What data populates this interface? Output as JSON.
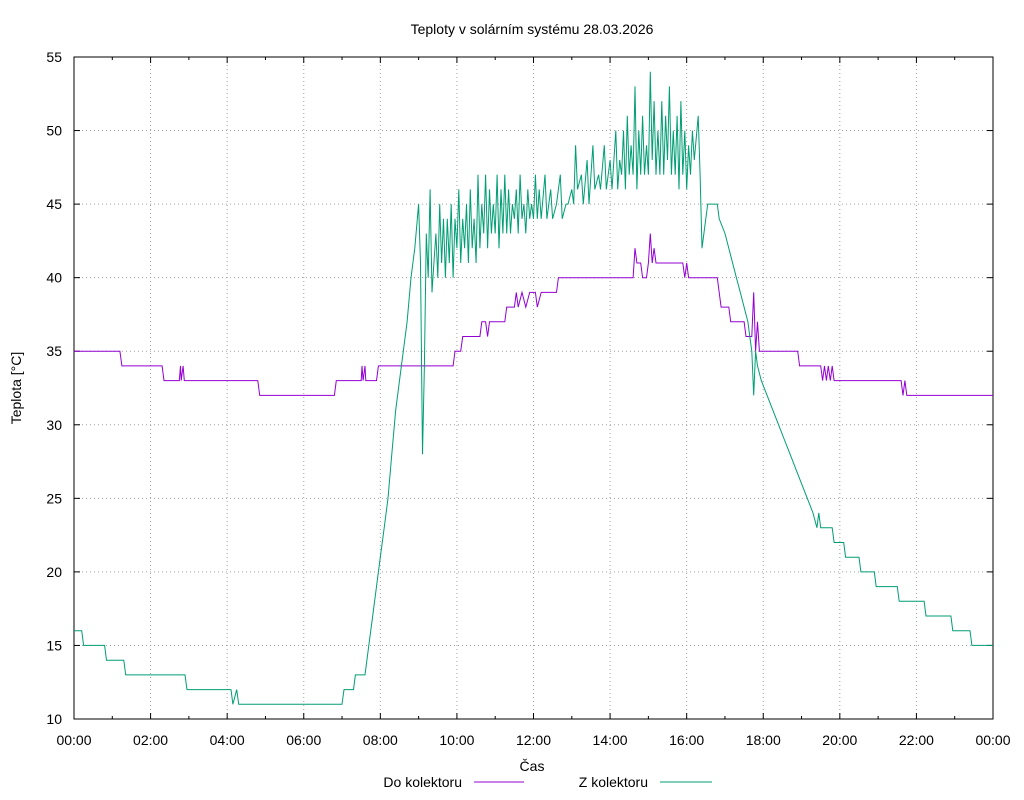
{
  "chart_data": {
    "type": "line",
    "title": "Teploty v solárním systému 28.03.2026",
    "xlabel": "Čas",
    "ylabel": "Teplota [°C]",
    "xlim": [
      0,
      24
    ],
    "ylim": [
      10,
      55
    ],
    "grid": true,
    "legend_position": "bottom",
    "x_tick_labels": [
      "00:00",
      "02:00",
      "04:00",
      "06:00",
      "08:00",
      "10:00",
      "12:00",
      "14:00",
      "16:00",
      "18:00",
      "20:00",
      "22:00",
      "00:00"
    ],
    "y_tick_labels": [
      "10",
      "15",
      "20",
      "25",
      "30",
      "35",
      "40",
      "45",
      "50",
      "55"
    ],
    "series": [
      {
        "name": "Do kolektoru",
        "color": "#9400d3",
        "points": [
          [
            0,
            35
          ],
          [
            1.2,
            35
          ],
          [
            1.25,
            34
          ],
          [
            2.3,
            34
          ],
          [
            2.35,
            33
          ],
          [
            2.75,
            33
          ],
          [
            2.78,
            34
          ],
          [
            2.8,
            33
          ],
          [
            2.85,
            34
          ],
          [
            2.88,
            33
          ],
          [
            4.8,
            33
          ],
          [
            4.85,
            32
          ],
          [
            6.8,
            32
          ],
          [
            6.85,
            33
          ],
          [
            7.5,
            33
          ],
          [
            7.52,
            34
          ],
          [
            7.55,
            33
          ],
          [
            7.6,
            34
          ],
          [
            7.62,
            33
          ],
          [
            7.9,
            33
          ],
          [
            7.95,
            34
          ],
          [
            9.9,
            34
          ],
          [
            9.95,
            35
          ],
          [
            10.1,
            35
          ],
          [
            10.15,
            36
          ],
          [
            10.6,
            36
          ],
          [
            10.65,
            37
          ],
          [
            10.75,
            37
          ],
          [
            10.8,
            36
          ],
          [
            10.85,
            37
          ],
          [
            11.25,
            37
          ],
          [
            11.3,
            38
          ],
          [
            11.5,
            38
          ],
          [
            11.55,
            39
          ],
          [
            11.6,
            38
          ],
          [
            11.7,
            39
          ],
          [
            11.8,
            38
          ],
          [
            11.9,
            39
          ],
          [
            12.05,
            39
          ],
          [
            12.1,
            38
          ],
          [
            12.2,
            39
          ],
          [
            12.6,
            39
          ],
          [
            12.65,
            40
          ],
          [
            14.6,
            40
          ],
          [
            14.65,
            42
          ],
          [
            14.7,
            41
          ],
          [
            14.8,
            41
          ],
          [
            14.85,
            40
          ],
          [
            14.95,
            40
          ],
          [
            15.0,
            41
          ],
          [
            15.05,
            43
          ],
          [
            15.1,
            41
          ],
          [
            15.15,
            42
          ],
          [
            15.2,
            41
          ],
          [
            15.9,
            41
          ],
          [
            15.95,
            40
          ],
          [
            16.0,
            41
          ],
          [
            16.05,
            40
          ],
          [
            16.8,
            40
          ],
          [
            16.85,
            39
          ],
          [
            16.9,
            38
          ],
          [
            17.1,
            38
          ],
          [
            17.15,
            37
          ],
          [
            17.5,
            37
          ],
          [
            17.55,
            36
          ],
          [
            17.7,
            36
          ],
          [
            17.75,
            39
          ],
          [
            17.8,
            35
          ],
          [
            17.85,
            37
          ],
          [
            17.9,
            35
          ],
          [
            18.0,
            35
          ],
          [
            18.05,
            35
          ],
          [
            18.9,
            35
          ],
          [
            18.95,
            34
          ],
          [
            19.5,
            34
          ],
          [
            19.55,
            33
          ],
          [
            19.6,
            34
          ],
          [
            19.65,
            33
          ],
          [
            19.7,
            34
          ],
          [
            19.75,
            33
          ],
          [
            19.8,
            34
          ],
          [
            19.85,
            33
          ],
          [
            21.6,
            33
          ],
          [
            21.65,
            32
          ],
          [
            21.7,
            33
          ],
          [
            21.75,
            32
          ],
          [
            24,
            32
          ]
        ]
      },
      {
        "name": "Z kolektoru",
        "color": "#009e73",
        "points": [
          [
            0,
            16
          ],
          [
            0.2,
            16
          ],
          [
            0.25,
            15
          ],
          [
            0.8,
            15
          ],
          [
            0.85,
            14
          ],
          [
            1.3,
            14
          ],
          [
            1.35,
            13
          ],
          [
            2.9,
            13
          ],
          [
            2.95,
            12
          ],
          [
            4.1,
            12
          ],
          [
            4.15,
            11
          ],
          [
            4.25,
            12
          ],
          [
            4.3,
            11
          ],
          [
            7.0,
            11
          ],
          [
            7.05,
            12
          ],
          [
            7.3,
            12
          ],
          [
            7.35,
            13
          ],
          [
            7.6,
            13
          ],
          [
            7.7,
            15
          ],
          [
            7.8,
            17
          ],
          [
            7.9,
            19
          ],
          [
            8.0,
            21
          ],
          [
            8.1,
            23
          ],
          [
            8.2,
            25
          ],
          [
            8.3,
            28
          ],
          [
            8.4,
            31
          ],
          [
            8.5,
            33
          ],
          [
            8.6,
            35
          ],
          [
            8.7,
            37
          ],
          [
            8.8,
            40
          ],
          [
            8.9,
            42
          ],
          [
            9.0,
            45
          ],
          [
            9.05,
            41
          ],
          [
            9.1,
            28
          ],
          [
            9.15,
            34
          ],
          [
            9.2,
            43
          ],
          [
            9.25,
            40
          ],
          [
            9.3,
            46
          ],
          [
            9.35,
            39
          ],
          [
            9.4,
            41
          ],
          [
            9.45,
            43
          ],
          [
            9.5,
            40
          ],
          [
            9.55,
            45
          ],
          [
            9.6,
            41
          ],
          [
            9.65,
            44
          ],
          [
            9.7,
            40
          ],
          [
            9.75,
            44
          ],
          [
            9.8,
            41
          ],
          [
            9.85,
            45
          ],
          [
            9.9,
            40
          ],
          [
            9.95,
            44
          ],
          [
            10.0,
            42
          ],
          [
            10.05,
            46
          ],
          [
            10.1,
            41
          ],
          [
            10.15,
            44
          ],
          [
            10.2,
            42
          ],
          [
            10.25,
            45
          ],
          [
            10.3,
            41
          ],
          [
            10.35,
            46
          ],
          [
            10.4,
            42
          ],
          [
            10.45,
            44
          ],
          [
            10.5,
            41
          ],
          [
            10.55,
            47
          ],
          [
            10.6,
            42
          ],
          [
            10.65,
            45
          ],
          [
            10.7,
            43
          ],
          [
            10.75,
            47
          ],
          [
            10.8,
            42
          ],
          [
            10.85,
            46
          ],
          [
            10.9,
            43
          ],
          [
            10.95,
            45
          ],
          [
            11.0,
            43
          ],
          [
            11.05,
            47
          ],
          [
            11.1,
            42
          ],
          [
            11.15,
            46
          ],
          [
            11.2,
            43
          ],
          [
            11.25,
            47
          ],
          [
            11.3,
            43
          ],
          [
            11.35,
            46
          ],
          [
            11.4,
            43
          ],
          [
            11.45,
            45
          ],
          [
            11.5,
            44
          ],
          [
            11.55,
            46
          ],
          [
            11.6,
            43
          ],
          [
            11.65,
            47
          ],
          [
            11.7,
            44
          ],
          [
            11.75,
            45
          ],
          [
            11.8,
            43
          ],
          [
            11.85,
            46
          ],
          [
            11.9,
            44
          ],
          [
            11.95,
            45
          ],
          [
            12.0,
            44
          ],
          [
            12.05,
            47
          ],
          [
            12.1,
            44
          ],
          [
            12.15,
            46
          ],
          [
            12.2,
            44
          ],
          [
            12.3,
            47
          ],
          [
            12.35,
            44
          ],
          [
            12.45,
            46
          ],
          [
            12.5,
            44
          ],
          [
            12.6,
            45
          ],
          [
            12.7,
            47
          ],
          [
            12.75,
            44
          ],
          [
            12.85,
            45
          ],
          [
            12.9,
            45
          ],
          [
            13.0,
            46
          ],
          [
            13.05,
            45
          ],
          [
            13.1,
            49
          ],
          [
            13.15,
            46
          ],
          [
            13.25,
            47
          ],
          [
            13.3,
            45
          ],
          [
            13.4,
            48
          ],
          [
            13.45,
            45
          ],
          [
            13.55,
            49
          ],
          [
            13.6,
            46
          ],
          [
            13.7,
            47
          ],
          [
            13.75,
            46
          ],
          [
            13.85,
            49
          ],
          [
            13.9,
            46
          ],
          [
            14.0,
            48
          ],
          [
            14.05,
            46
          ],
          [
            14.15,
            50
          ],
          [
            14.2,
            46
          ],
          [
            14.25,
            48
          ],
          [
            14.3,
            47
          ],
          [
            14.35,
            50
          ],
          [
            14.4,
            46
          ],
          [
            14.45,
            51
          ],
          [
            14.5,
            47
          ],
          [
            14.55,
            49
          ],
          [
            14.6,
            47
          ],
          [
            14.65,
            53
          ],
          [
            14.7,
            46
          ],
          [
            14.75,
            50
          ],
          [
            14.8,
            47
          ],
          [
            14.85,
            51
          ],
          [
            14.9,
            47
          ],
          [
            14.95,
            49
          ],
          [
            15.0,
            47
          ],
          [
            15.05,
            54
          ],
          [
            15.1,
            48
          ],
          [
            15.15,
            52
          ],
          [
            15.2,
            47
          ],
          [
            15.25,
            50
          ],
          [
            15.3,
            47
          ],
          [
            15.35,
            52
          ],
          [
            15.4,
            47
          ],
          [
            15.45,
            51
          ],
          [
            15.5,
            48
          ],
          [
            15.55,
            53
          ],
          [
            15.6,
            47
          ],
          [
            15.65,
            50
          ],
          [
            15.7,
            47
          ],
          [
            15.75,
            51
          ],
          [
            15.8,
            46
          ],
          [
            15.85,
            52
          ],
          [
            15.9,
            47
          ],
          [
            15.95,
            50
          ],
          [
            16.0,
            46
          ],
          [
            16.05,
            49
          ],
          [
            16.1,
            47
          ],
          [
            16.15,
            50
          ],
          [
            16.2,
            48
          ],
          [
            16.3,
            51
          ],
          [
            16.35,
            47
          ],
          [
            16.4,
            42
          ],
          [
            16.45,
            43
          ],
          [
            16.5,
            44
          ],
          [
            16.55,
            45
          ],
          [
            16.8,
            45
          ],
          [
            16.85,
            44
          ],
          [
            17.0,
            43
          ],
          [
            17.1,
            42
          ],
          [
            17.2,
            41
          ],
          [
            17.3,
            40
          ],
          [
            17.4,
            39
          ],
          [
            17.5,
            38
          ],
          [
            17.6,
            37
          ],
          [
            17.65,
            36
          ],
          [
            17.7,
            35
          ],
          [
            17.75,
            32
          ],
          [
            17.8,
            35
          ],
          [
            17.85,
            34
          ],
          [
            17.95,
            33
          ],
          [
            18.1,
            32
          ],
          [
            18.25,
            31
          ],
          [
            18.4,
            30
          ],
          [
            18.55,
            29
          ],
          [
            18.7,
            28
          ],
          [
            18.85,
            27
          ],
          [
            19.0,
            26
          ],
          [
            19.15,
            25
          ],
          [
            19.3,
            24
          ],
          [
            19.4,
            23
          ],
          [
            19.45,
            24
          ],
          [
            19.5,
            23
          ],
          [
            19.8,
            23
          ],
          [
            19.85,
            22
          ],
          [
            20.1,
            22
          ],
          [
            20.15,
            21
          ],
          [
            20.5,
            21
          ],
          [
            20.55,
            20
          ],
          [
            20.9,
            20
          ],
          [
            20.95,
            19
          ],
          [
            21.5,
            19
          ],
          [
            21.55,
            18
          ],
          [
            22.2,
            18
          ],
          [
            22.25,
            17
          ],
          [
            22.9,
            17
          ],
          [
            22.95,
            16
          ],
          [
            23.4,
            16
          ],
          [
            23.45,
            15
          ],
          [
            24,
            15
          ]
        ]
      }
    ]
  }
}
